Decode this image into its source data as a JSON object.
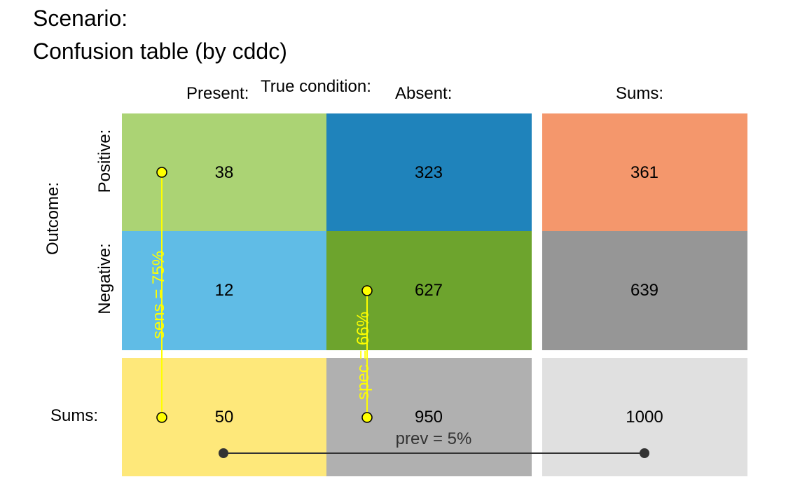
{
  "title_lines": [
    "Scenario:",
    "Confusion table (by cddc)"
  ],
  "col_header": "True condition:",
  "col_labels": {
    "present": "Present:",
    "absent": "Absent:",
    "sums": "Sums:"
  },
  "row_header": "Outcome:",
  "row_labels": {
    "positive": "Positive:",
    "negative": "Negative:",
    "sums": "Sums:"
  },
  "cells": {
    "hi": {
      "value": "38",
      "color": "#abd374"
    },
    "fa": {
      "value": "323",
      "color": "#1f83bb"
    },
    "dec_pos": {
      "value": "361",
      "color": "#f4976c"
    },
    "mi": {
      "value": "12",
      "color": "#60bce6"
    },
    "cr": {
      "value": "627",
      "color": "#6da42d"
    },
    "dec_neg": {
      "value": "639",
      "color": "#969696"
    },
    "cond_true": {
      "value": "50",
      "color": "#fee87a"
    },
    "cond_false": {
      "value": "950",
      "color": "#b0b0b0"
    },
    "total": {
      "value": "1000",
      "color": "#e0e0e0"
    }
  },
  "metrics": {
    "sens": {
      "label": "sens = 75%",
      "color": "#ffff00"
    },
    "spec": {
      "label": "spec = 66%",
      "color": "#ffff00"
    },
    "prev": {
      "label": "prev = 5%",
      "color": "#333333"
    }
  }
}
